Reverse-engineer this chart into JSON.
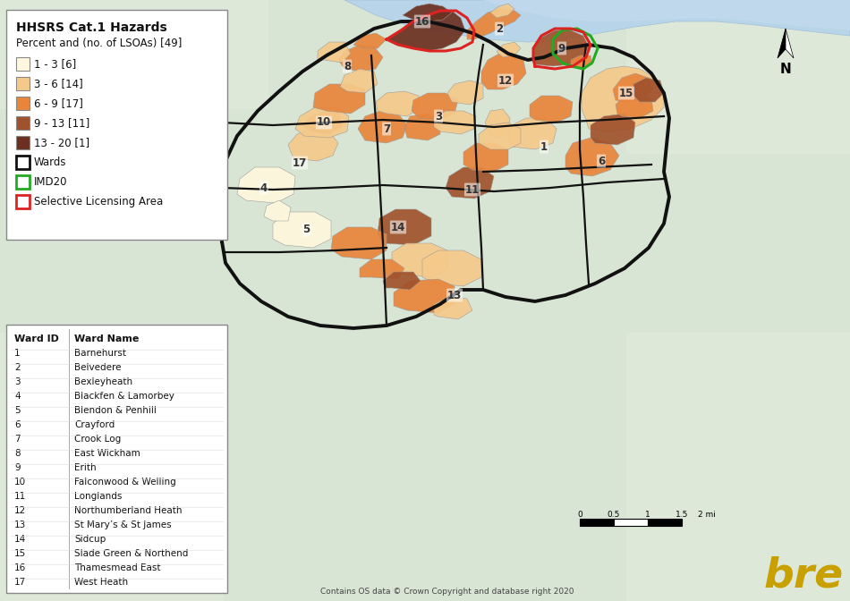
{
  "title": "HHSRS Cat.1 Hazards",
  "subtitle": "Percent and (no. of LSOAs) [49]",
  "legend_items": [
    {
      "label": "1 - 3 [6]",
      "color": "#FFF8DC"
    },
    {
      "label": "3 - 6 [14]",
      "color": "#F5C98A"
    },
    {
      "label": "6 - 9 [17]",
      "color": "#E8853A"
    },
    {
      "label": "9 - 13 [11]",
      "color": "#A0522D"
    },
    {
      "label": "13 - 20 [1]",
      "color": "#6B3020"
    }
  ],
  "legend_wards": {
    "label": "Wards",
    "edgecolor": "#111111",
    "facecolor": "#FFFFFF"
  },
  "legend_imd20": {
    "label": "IMD20",
    "edgecolor": "#22AA22",
    "facecolor": "none"
  },
  "legend_sla": {
    "label": "Selective Licensing Area",
    "edgecolor": "#DD2222",
    "facecolor": "none"
  },
  "ward_table": {
    "headers": [
      "Ward ID",
      "Ward Name"
    ],
    "rows": [
      [
        "1",
        "Barnehurst"
      ],
      [
        "2",
        "Belvedere"
      ],
      [
        "3",
        "Bexleyheath"
      ],
      [
        "4",
        "Blackfen & Lamorbey"
      ],
      [
        "5",
        "Blendon & Penhill"
      ],
      [
        "6",
        "Crayford"
      ],
      [
        "7",
        "Crook Log"
      ],
      [
        "8",
        "East Wickham"
      ],
      [
        "9",
        "Erith"
      ],
      [
        "10",
        "Falconwood & Welling"
      ],
      [
        "11",
        "Longlands"
      ],
      [
        "12",
        "Northumberland Heath"
      ],
      [
        "13",
        "St Mary’s & St James"
      ],
      [
        "14",
        "Sidcup"
      ],
      [
        "15",
        "Slade Green & Northend"
      ],
      [
        "16",
        "Thamesmead East"
      ],
      [
        "17",
        "West Heath"
      ]
    ]
  },
  "footer_text": "Contains OS data © Crown Copyright and database right 2020",
  "bre_color": "#C8A000",
  "background_color": "#E8EEF0",
  "map_background": "#D4E1D4",
  "fig_width": 9.5,
  "fig_height": 6.72
}
